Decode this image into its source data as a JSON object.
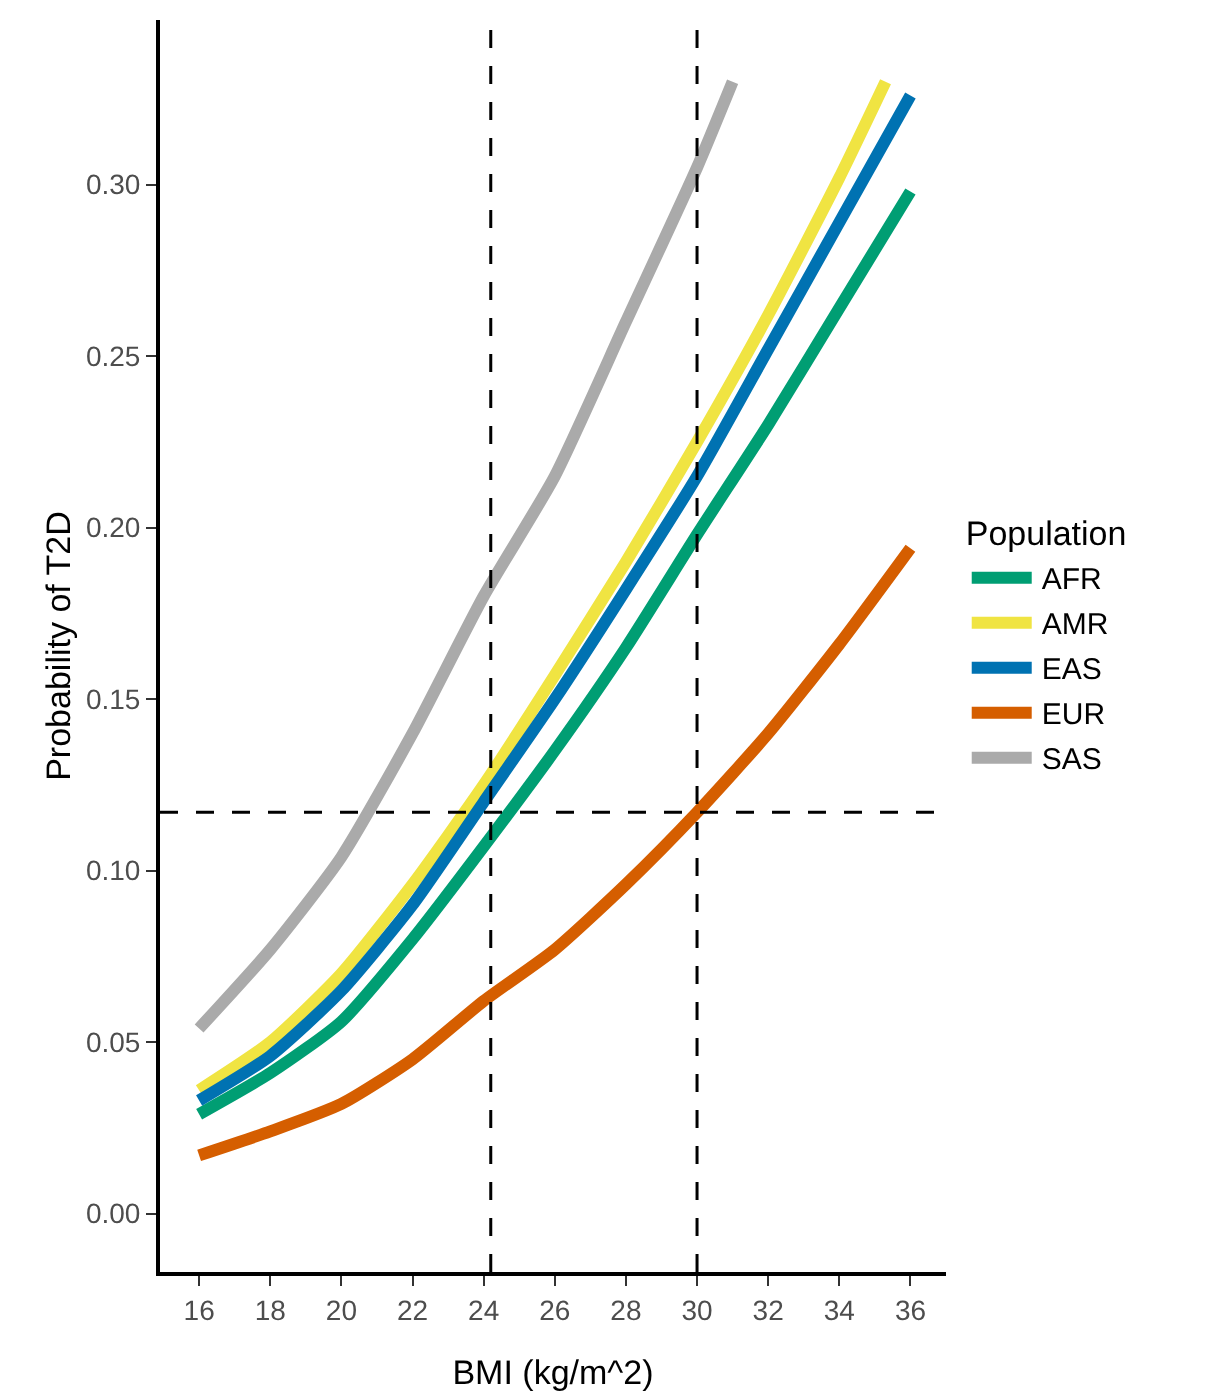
{
  "chart_data": {
    "type": "line",
    "xlabel": "BMI (kg/m^2)",
    "ylabel": "Probability of T2D",
    "legend_title": "Population",
    "legend": "right",
    "grid": false,
    "marker": "none",
    "line_style": "solid",
    "xlim": [
      14.9,
      37
    ],
    "xticks": [
      16,
      18,
      20,
      22,
      24,
      26,
      28,
      30,
      32,
      34,
      36
    ],
    "ylim": [
      -0.017,
      0.348
    ],
    "yticks": [
      {
        "value": 0,
        "label": "0.00"
      },
      {
        "value": 0.05,
        "label": "0.05"
      },
      {
        "value": 0.1,
        "label": "0.10"
      },
      {
        "value": 0.15,
        "label": "0.15"
      },
      {
        "value": 0.2,
        "label": "0.20"
      },
      {
        "value": 0.25,
        "label": "0.25"
      },
      {
        "value": 0.3,
        "label": "0.30"
      }
    ],
    "series": [
      {
        "name": "AFR",
        "color": "#009e73",
        "x": [
          16,
          18,
          20,
          22,
          24,
          26,
          28,
          30,
          32,
          34,
          36
        ],
        "values": [
          0.029,
          0.041,
          0.056,
          0.08,
          0.107,
          0.135,
          0.165,
          0.198,
          0.23,
          0.264,
          0.298
        ]
      },
      {
        "name": "AMR",
        "color": "#f0e442",
        "x": [
          16,
          18,
          20,
          22,
          24,
          26,
          28,
          30,
          32,
          34,
          35.3
        ],
        "values": [
          0.036,
          0.05,
          0.07,
          0.096,
          0.125,
          0.157,
          0.19,
          0.225,
          0.262,
          0.302,
          0.33
        ]
      },
      {
        "name": "EAS",
        "color": "#0072b2",
        "x": [
          16,
          18,
          20,
          22,
          24,
          26,
          28,
          30,
          32,
          34,
          36
        ],
        "values": [
          0.033,
          0.046,
          0.065,
          0.09,
          0.12,
          0.15,
          0.182,
          0.215,
          0.252,
          0.289,
          0.326
        ]
      },
      {
        "name": "EUR",
        "color": "#d55e00",
        "x": [
          16,
          18,
          20,
          22,
          24,
          26,
          28,
          30,
          32,
          34,
          36
        ],
        "values": [
          0.017,
          0.024,
          0.032,
          0.045,
          0.062,
          0.077,
          0.096,
          0.117,
          0.14,
          0.166,
          0.194
        ]
      },
      {
        "name": "SAS",
        "color": "#aaaaaa",
        "x": [
          16,
          18,
          20,
          22,
          24,
          26,
          28,
          30,
          31
        ],
        "values": [
          0.054,
          0.077,
          0.104,
          0.14,
          0.18,
          0.215,
          0.26,
          0.305,
          0.33
        ]
      }
    ],
    "ref_lines": [
      {
        "axis": "x",
        "value": 24.2,
        "color": "#000000",
        "line_style": "dashed"
      },
      {
        "axis": "x",
        "value": 30,
        "color": "#000000",
        "line_style": "dashed"
      },
      {
        "axis": "y",
        "value": 0.117,
        "color": "#000000",
        "line_style": "dashed"
      }
    ]
  }
}
